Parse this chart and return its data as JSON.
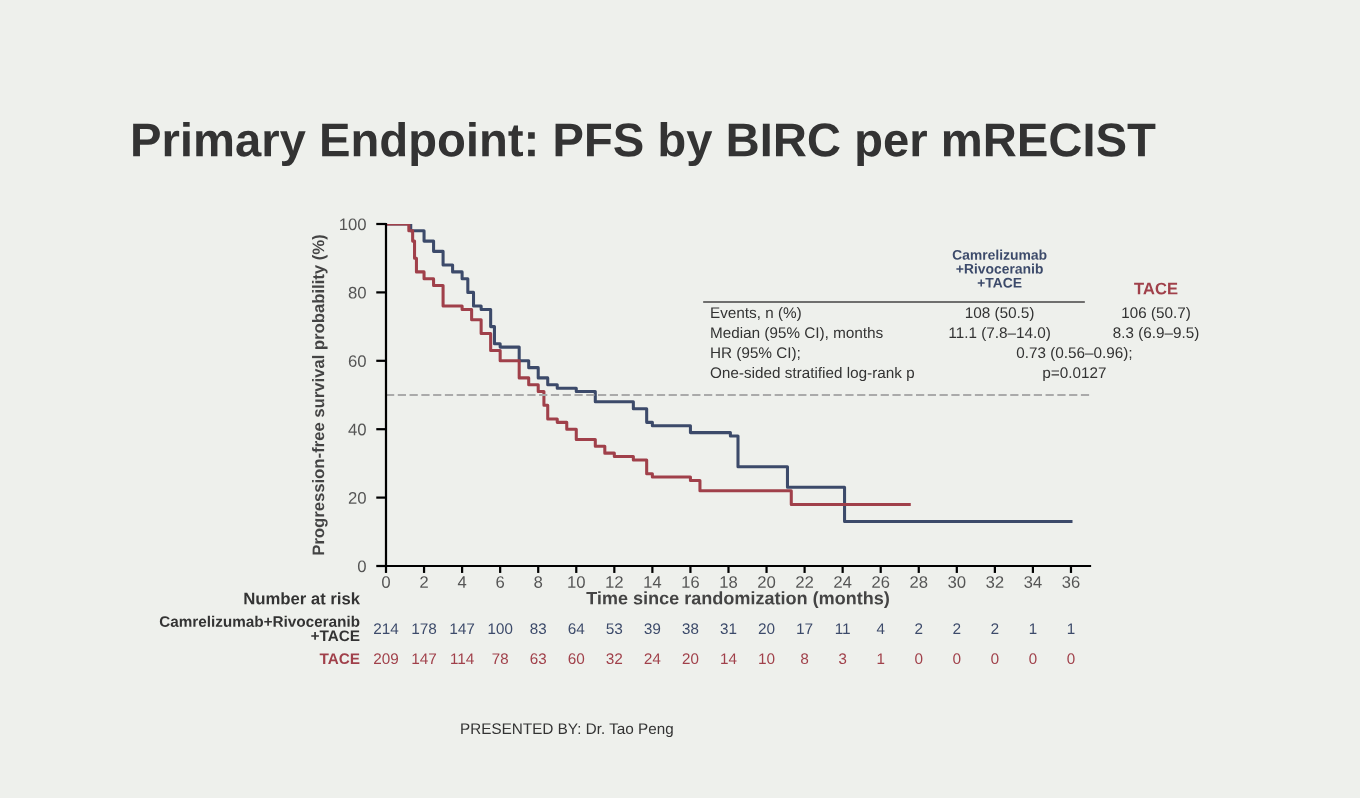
{
  "chart_data": {
    "type": "step",
    "title": "Primary Endpoint: PFS by BIRC per mRECIST",
    "xlabel": "Time since randomization (months)",
    "ylabel": "Progression-free survival probability (%)",
    "xlim": [
      0,
      37
    ],
    "xticks": [
      0,
      2,
      4,
      6,
      8,
      10,
      12,
      14,
      16,
      18,
      20,
      22,
      24,
      26,
      28,
      30,
      32,
      34,
      36
    ],
    "ylim": [
      0,
      100
    ],
    "yticks": [
      0,
      20,
      40,
      60,
      80,
      100
    ],
    "grid": false,
    "line_style": "solid",
    "series": [
      {
        "name": "Camrelizumab+Rivoceranib+TACE",
        "color": "#3c4a6a",
        "x": [
          0,
          1,
          1.3,
          2,
          2.5,
          3,
          3.5,
          4,
          4.3,
          4.6,
          5,
          5.5,
          5.7,
          6,
          7,
          7.5,
          8,
          8.5,
          9,
          10,
          11,
          13,
          13.7,
          14,
          16,
          18.1,
          18.5,
          21.1,
          24.1,
          36
        ],
        "values": [
          100,
          100,
          98,
          95,
          92,
          88,
          86,
          84,
          80,
          76,
          75,
          70,
          65,
          64,
          60,
          58,
          55,
          53,
          52,
          51,
          48,
          46,
          42,
          41,
          39,
          38,
          29,
          23,
          13,
          13
        ]
      },
      {
        "name": "TACE",
        "color": "#a0404a",
        "x": [
          0,
          1,
          1.2,
          1.4,
          1.5,
          1.6,
          2,
          2.5,
          3,
          4,
          4.5,
          5,
          5.5,
          6,
          7,
          7.5,
          8,
          8.3,
          8.5,
          9,
          9.5,
          10,
          11,
          11.5,
          12,
          13,
          13.7,
          14,
          16,
          16.5,
          21.3,
          27.5
        ],
        "values": [
          100,
          100,
          98,
          95,
          90,
          86,
          84,
          82,
          76,
          75,
          72,
          68,
          63,
          60,
          55,
          53,
          51,
          47,
          43,
          42,
          40,
          37,
          35,
          33,
          32,
          31,
          27,
          26,
          25,
          22,
          18,
          18
        ]
      }
    ],
    "ref_lines": [
      {
        "axis": "y",
        "value": 50,
        "color": "#aaaaaa",
        "line_style": "dashed"
      }
    ],
    "annotations": [
      "Events, n (%)",
      "108 (50.5)",
      "106 (50.7)",
      "Median (95% CI), months",
      "11.1 (7.8–14.0)",
      "8.3 (6.9–9.5)",
      "HR (95% CI);",
      "0.73 (0.56–0.96);",
      "One-sided stratified log-rank p",
      "p=0.0127",
      "Number at risk",
      "214 178 147 100 83 64 53 39 38 31 20 17 11 4 2 2 2 1 1",
      "209 147 114 78 63 60 32 24 20 14 10 8 3 1 0 0 0 0 0",
      "PRESENTED BY: Dr. Tao Peng"
    ]
  }
}
